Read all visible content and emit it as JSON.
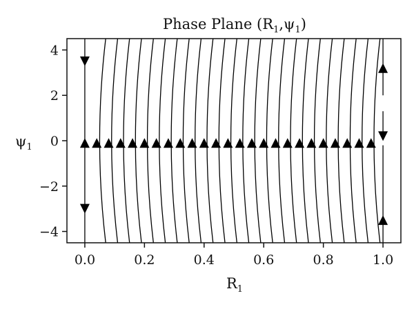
{
  "chart_data": {
    "type": "line",
    "title": "Phase Plane (R",
    "title_sub1": "1",
    "title_mid": ",ψ",
    "title_sub2": "1",
    "title_end": ")",
    "xlabel": "R",
    "xlabel_sub": "1",
    "ylabel": "ψ",
    "ylabel_sub": "1",
    "xlim": [
      -0.06,
      1.06
    ],
    "ylim": [
      -4.5,
      4.5
    ],
    "xticks": [
      0.0,
      0.2,
      0.4,
      0.6,
      0.8,
      1.0
    ],
    "xtick_labels": [
      "0.0",
      "0.2",
      "0.4",
      "0.6",
      "0.8",
      "1.0"
    ],
    "yticks": [
      4,
      2,
      0,
      -2,
      -4
    ],
    "ytick_labels": [
      "4",
      "2",
      "0",
      "−2",
      "−4"
    ],
    "grid": false,
    "line_color": "#000000",
    "trajectories_R_at_psi0": [
      0.0,
      0.04,
      0.08,
      0.12,
      0.16,
      0.2,
      0.24,
      0.28,
      0.32,
      0.36,
      0.4,
      0.44,
      0.48,
      0.52,
      0.56,
      0.6,
      0.64,
      0.68,
      0.72,
      0.76,
      0.8,
      0.84,
      0.88,
      0.92,
      0.96,
      1.0
    ],
    "trajectory_bow": 0.03,
    "arrows": [
      {
        "x": 0.0,
        "y": 3.5,
        "dir": "down"
      },
      {
        "x": 0.0,
        "y": -3.0,
        "dir": "down"
      },
      {
        "x": 1.0,
        "y": 3.2,
        "dir": "up"
      },
      {
        "x": 1.0,
        "y": -3.5,
        "dir": "up"
      },
      {
        "x": 1.0,
        "y": 0.2,
        "dir": "down"
      }
    ],
    "equilibrium_arrows_y": -0.1,
    "equilibrium_arrows_x": [
      0.0,
      0.04,
      0.08,
      0.12,
      0.16,
      0.2,
      0.24,
      0.28,
      0.32,
      0.36,
      0.4,
      0.44,
      0.48,
      0.52,
      0.56,
      0.6,
      0.64,
      0.68,
      0.72,
      0.76,
      0.8,
      0.84,
      0.88,
      0.92,
      0.96
    ],
    "gaps_on_R1_line": [
      [
        1.3,
        2.0
      ],
      [
        -0.2,
        0.25
      ]
    ]
  }
}
